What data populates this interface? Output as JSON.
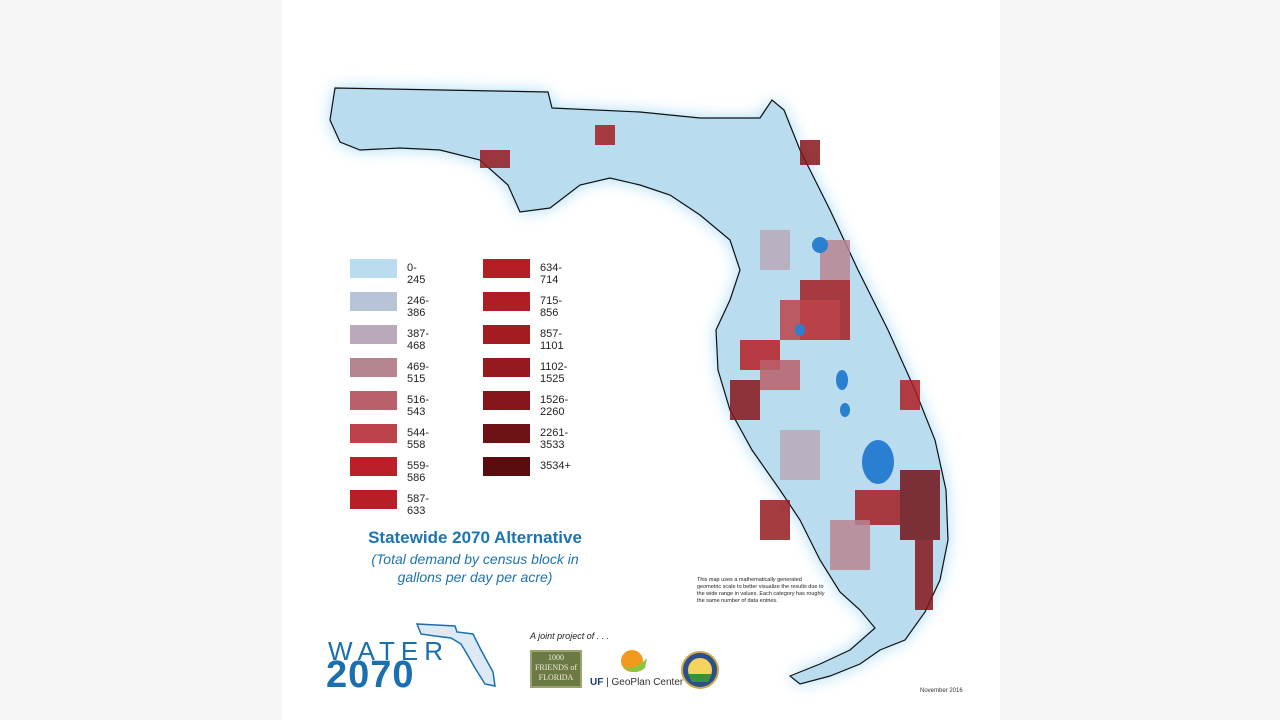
{
  "map": {
    "title": "Statewide 2070 Alternative",
    "subtitle_line1": "(Total demand by census block in",
    "subtitle_line2": "gallons per day per acre)",
    "region": "Florida",
    "base_color": "#b9dcef",
    "water_color": "#2a7fd0",
    "legend": [
      {
        "label": "0-245",
        "color": "#b9dcef"
      },
      {
        "label": "246-386",
        "color": "#b7c3d6"
      },
      {
        "label": "387-468",
        "color": "#b9a9b9"
      },
      {
        "label": "469-515",
        "color": "#b7858f"
      },
      {
        "label": "516-543",
        "color": "#b9606a"
      },
      {
        "label": "544-558",
        "color": "#bc434a"
      },
      {
        "label": "559-586",
        "color": "#bb2028"
      },
      {
        "label": "587-633",
        "color": "#b71f26"
      },
      {
        "label": "634-714",
        "color": "#b51e25"
      },
      {
        "label": "715-856",
        "color": "#ae1e24"
      },
      {
        "label": "857-1101",
        "color": "#a31c22"
      },
      {
        "label": "1102-1525",
        "color": "#941a1f"
      },
      {
        "label": "1526-2260",
        "color": "#86151a"
      },
      {
        "label": "2261-3533",
        "color": "#6e1215"
      },
      {
        "label": "3534+",
        "color": "#5a0d0f"
      }
    ],
    "note": "This map uses a mathematically generated geometric scale to better visualize the results due to the wide range in values. Each category has roughly the same number of data entries.",
    "date": "November 2016"
  },
  "footer": {
    "logo_water": "WATER",
    "logo_year": "2070",
    "joint_project": "A joint project of . . .",
    "friends_logo": "1000 FRIENDS of FLORIDA",
    "uf_logo_mark": "UF",
    "uf_logo_text": "GeoPlan Center",
    "seal_logo": "Florida Department of Agriculture seal"
  }
}
